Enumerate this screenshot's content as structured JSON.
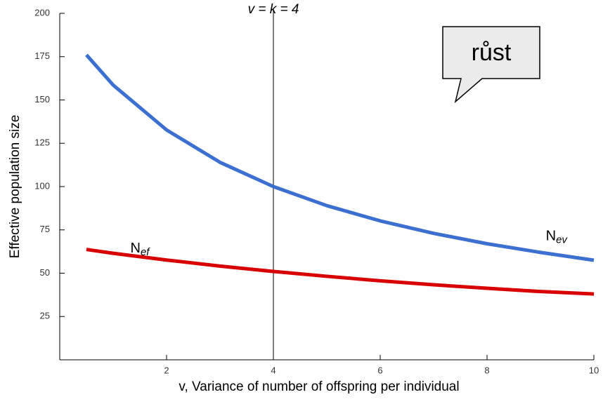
{
  "chart_data": {
    "type": "line",
    "xlabel": "v, Variance of number of offspring per individual",
    "ylabel": "Effective population size",
    "x": [
      0.5,
      1,
      2,
      3,
      4,
      5,
      6,
      7,
      8,
      9,
      10
    ],
    "series": [
      {
        "name": "N",
        "name_sub": "ev",
        "color": "#3b6fd0",
        "values": [
          176,
          158.6,
          132.7,
          114,
          100,
          89,
          80.2,
          73,
          67,
          62,
          57.5
        ],
        "label_at": [
          9.3,
          71
        ]
      },
      {
        "name": "N",
        "name_sub": "ef",
        "color": "#d80000",
        "values": [
          63.7,
          61.5,
          57.6,
          54.1,
          51,
          48.2,
          45.6,
          43.3,
          41.3,
          39.4,
          38
        ],
        "label_at": [
          1.5,
          64
        ]
      }
    ],
    "vline": {
      "x": 4,
      "label": "v = k = 4"
    },
    "callout": "růst",
    "xlim": [
      0,
      10
    ],
    "xticks": [
      2,
      4,
      6,
      8,
      10
    ],
    "ylim": [
      0,
      200
    ],
    "yticks": [
      25,
      50,
      75,
      100,
      125,
      150,
      175,
      200
    ]
  }
}
